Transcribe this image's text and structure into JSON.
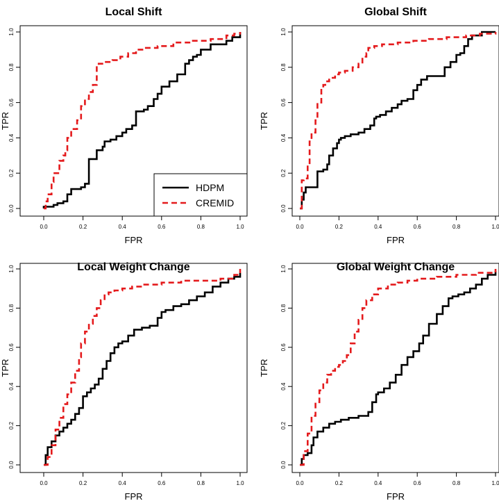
{
  "colors": {
    "hdpm": "#000000",
    "cremid": "#e41a1c"
  },
  "legend": {
    "entries": [
      "HDPM",
      "CREMID"
    ],
    "panel": 0,
    "placement": "bottom-right"
  },
  "chart_data": [
    {
      "type": "line",
      "title": "Local Shift",
      "xlabel": "FPR",
      "ylabel": "TPR",
      "xlim": [
        0,
        1
      ],
      "ylim": [
        0,
        1
      ],
      "xticks": [
        "0.0",
        "0.2",
        "0.4",
        "0.6",
        "0.8",
        "1.0"
      ],
      "yticks": [
        "0.0",
        "0.2",
        "0.4",
        "0.6",
        "0.8",
        "1.0"
      ],
      "series": [
        {
          "name": "HDPM",
          "style": "solid",
          "x": [
            0.0,
            0.0,
            0.05,
            0.07,
            0.1,
            0.12,
            0.14,
            0.19,
            0.21,
            0.23,
            0.23,
            0.25,
            0.27,
            0.27,
            0.3,
            0.31,
            0.34,
            0.37,
            0.4,
            0.42,
            0.45,
            0.47,
            0.47,
            0.5,
            0.51,
            0.53,
            0.56,
            0.58,
            0.6,
            0.64,
            0.68,
            0.72,
            0.72,
            0.74,
            0.76,
            0.78,
            0.8,
            0.85,
            0.9,
            0.93,
            0.96,
            1.0
          ],
          "y": [
            0.0,
            0.01,
            0.02,
            0.03,
            0.04,
            0.08,
            0.11,
            0.12,
            0.14,
            0.16,
            0.28,
            0.28,
            0.32,
            0.33,
            0.35,
            0.38,
            0.39,
            0.41,
            0.43,
            0.45,
            0.47,
            0.5,
            0.55,
            0.55,
            0.56,
            0.58,
            0.62,
            0.65,
            0.69,
            0.72,
            0.76,
            0.8,
            0.82,
            0.84,
            0.86,
            0.87,
            0.9,
            0.93,
            0.93,
            0.95,
            0.97,
            1.0
          ]
        },
        {
          "name": "CREMID",
          "style": "dashed",
          "x": [
            0.0,
            0.01,
            0.02,
            0.04,
            0.05,
            0.08,
            0.1,
            0.11,
            0.12,
            0.14,
            0.17,
            0.19,
            0.21,
            0.23,
            0.25,
            0.27,
            0.28,
            0.31,
            0.35,
            0.39,
            0.43,
            0.47,
            0.52,
            0.58,
            0.66,
            0.75,
            0.85,
            0.93,
            0.97,
            1.0
          ],
          "y": [
            0.0,
            0.04,
            0.08,
            0.15,
            0.2,
            0.27,
            0.3,
            0.33,
            0.4,
            0.45,
            0.5,
            0.58,
            0.62,
            0.66,
            0.7,
            0.81,
            0.82,
            0.83,
            0.84,
            0.86,
            0.88,
            0.9,
            0.91,
            0.92,
            0.94,
            0.95,
            0.96,
            0.98,
            0.99,
            1.0
          ]
        }
      ]
    },
    {
      "type": "line",
      "title": "Global Shift",
      "xlabel": "FPR",
      "ylabel": "TPR",
      "xlim": [
        0,
        1
      ],
      "ylim": [
        0,
        1
      ],
      "xticks": [
        "0.0",
        "0.2",
        "0.4",
        "0.6",
        "0.8",
        "1.0"
      ],
      "yticks": [
        "0.0",
        "0.2",
        "0.4",
        "0.6",
        "0.8",
        "1.0"
      ],
      "series": [
        {
          "name": "HDPM",
          "style": "solid",
          "x": [
            0.0,
            0.01,
            0.02,
            0.03,
            0.06,
            0.09,
            0.09,
            0.12,
            0.14,
            0.15,
            0.17,
            0.19,
            0.2,
            0.21,
            0.23,
            0.26,
            0.3,
            0.33,
            0.36,
            0.38,
            0.39,
            0.41,
            0.44,
            0.47,
            0.5,
            0.52,
            0.55,
            0.58,
            0.6,
            0.62,
            0.65,
            0.68,
            0.72,
            0.74,
            0.77,
            0.8,
            0.82,
            0.84,
            0.86,
            0.88,
            0.93,
            1.0
          ],
          "y": [
            0.0,
            0.05,
            0.09,
            0.12,
            0.12,
            0.15,
            0.21,
            0.22,
            0.25,
            0.3,
            0.34,
            0.37,
            0.39,
            0.4,
            0.41,
            0.42,
            0.43,
            0.45,
            0.47,
            0.51,
            0.52,
            0.53,
            0.55,
            0.57,
            0.59,
            0.61,
            0.62,
            0.67,
            0.7,
            0.73,
            0.75,
            0.75,
            0.75,
            0.8,
            0.83,
            0.87,
            0.88,
            0.92,
            0.96,
            0.98,
            1.0,
            1.0
          ]
        },
        {
          "name": "CREMID",
          "style": "dashed",
          "x": [
            0.0,
            0.01,
            0.02,
            0.04,
            0.05,
            0.06,
            0.08,
            0.09,
            0.11,
            0.12,
            0.13,
            0.15,
            0.18,
            0.2,
            0.23,
            0.27,
            0.3,
            0.32,
            0.34,
            0.35,
            0.38,
            0.42,
            0.5,
            0.58,
            0.66,
            0.75,
            0.85,
            0.92,
            1.0
          ],
          "y": [
            0.0,
            0.16,
            0.17,
            0.25,
            0.38,
            0.43,
            0.5,
            0.6,
            0.68,
            0.7,
            0.72,
            0.74,
            0.76,
            0.77,
            0.78,
            0.8,
            0.82,
            0.86,
            0.88,
            0.91,
            0.92,
            0.93,
            0.94,
            0.95,
            0.96,
            0.97,
            0.98,
            0.99,
            1.0
          ]
        }
      ]
    },
    {
      "type": "line",
      "title": "Local Weight Change",
      "xlabel": "FPR",
      "ylabel": "TPR",
      "xlim": [
        0,
        1
      ],
      "ylim": [
        0,
        1
      ],
      "xticks": [
        "0.0",
        "0.2",
        "0.4",
        "0.6",
        "0.8",
        "1.0"
      ],
      "yticks": [
        "0.0",
        "0.2",
        "0.4",
        "0.6",
        "0.8",
        "1.0"
      ],
      "series": [
        {
          "name": "HDPM",
          "style": "solid",
          "x": [
            0.0,
            0.01,
            0.02,
            0.04,
            0.06,
            0.08,
            0.1,
            0.12,
            0.14,
            0.16,
            0.18,
            0.2,
            0.22,
            0.24,
            0.26,
            0.28,
            0.3,
            0.32,
            0.34,
            0.36,
            0.38,
            0.4,
            0.43,
            0.46,
            0.5,
            0.54,
            0.58,
            0.6,
            0.62,
            0.66,
            0.7,
            0.74,
            0.78,
            0.82,
            0.86,
            0.9,
            0.94,
            0.97,
            1.0
          ],
          "y": [
            0.0,
            0.05,
            0.09,
            0.12,
            0.15,
            0.17,
            0.19,
            0.21,
            0.23,
            0.26,
            0.29,
            0.35,
            0.37,
            0.39,
            0.41,
            0.44,
            0.49,
            0.53,
            0.57,
            0.6,
            0.62,
            0.63,
            0.66,
            0.69,
            0.7,
            0.71,
            0.75,
            0.78,
            0.79,
            0.81,
            0.82,
            0.84,
            0.86,
            0.88,
            0.91,
            0.93,
            0.95,
            0.96,
            0.98
          ]
        },
        {
          "name": "CREMID",
          "style": "dashed",
          "x": [
            0.0,
            0.02,
            0.04,
            0.06,
            0.08,
            0.1,
            0.12,
            0.14,
            0.16,
            0.18,
            0.19,
            0.21,
            0.23,
            0.25,
            0.27,
            0.29,
            0.31,
            0.33,
            0.36,
            0.4,
            0.45,
            0.5,
            0.6,
            0.7,
            0.8,
            0.9,
            0.97,
            1.0
          ],
          "y": [
            0.0,
            0.04,
            0.1,
            0.18,
            0.24,
            0.31,
            0.36,
            0.42,
            0.48,
            0.55,
            0.62,
            0.68,
            0.72,
            0.76,
            0.8,
            0.84,
            0.87,
            0.88,
            0.89,
            0.9,
            0.91,
            0.92,
            0.93,
            0.94,
            0.94,
            0.95,
            0.97,
            1.0
          ]
        }
      ]
    },
    {
      "type": "line",
      "title": "Global Weight Change",
      "xlabel": "FPR",
      "ylabel": "TPR",
      "xlim": [
        0,
        1
      ],
      "ylim": [
        0,
        1
      ],
      "xticks": [
        "0.0",
        "0.2",
        "0.4",
        "0.6",
        "0.8",
        "1.0"
      ],
      "yticks": [
        "0.0",
        "0.2",
        "0.4",
        "0.6",
        "0.8",
        "1.0"
      ],
      "series": [
        {
          "name": "HDPM",
          "style": "solid",
          "x": [
            0.0,
            0.01,
            0.02,
            0.04,
            0.06,
            0.07,
            0.09,
            0.12,
            0.15,
            0.18,
            0.21,
            0.25,
            0.3,
            0.35,
            0.37,
            0.39,
            0.4,
            0.43,
            0.46,
            0.49,
            0.52,
            0.55,
            0.58,
            0.61,
            0.63,
            0.66,
            0.7,
            0.73,
            0.76,
            0.78,
            0.81,
            0.84,
            0.87,
            0.9,
            0.93,
            0.96,
            1.0
          ],
          "y": [
            0.0,
            0.03,
            0.05,
            0.06,
            0.1,
            0.14,
            0.17,
            0.19,
            0.21,
            0.22,
            0.23,
            0.24,
            0.25,
            0.27,
            0.32,
            0.36,
            0.37,
            0.39,
            0.42,
            0.46,
            0.51,
            0.55,
            0.58,
            0.62,
            0.66,
            0.72,
            0.77,
            0.81,
            0.85,
            0.86,
            0.87,
            0.88,
            0.9,
            0.92,
            0.95,
            0.97,
            0.99
          ]
        },
        {
          "name": "CREMID",
          "style": "dashed",
          "x": [
            0.0,
            0.02,
            0.04,
            0.06,
            0.08,
            0.1,
            0.12,
            0.14,
            0.16,
            0.18,
            0.2,
            0.22,
            0.24,
            0.26,
            0.28,
            0.3,
            0.32,
            0.34,
            0.37,
            0.4,
            0.45,
            0.5,
            0.55,
            0.6,
            0.7,
            0.8,
            0.9,
            1.0
          ],
          "y": [
            0.0,
            0.07,
            0.16,
            0.25,
            0.32,
            0.38,
            0.42,
            0.46,
            0.48,
            0.5,
            0.51,
            0.53,
            0.56,
            0.62,
            0.68,
            0.74,
            0.8,
            0.84,
            0.87,
            0.9,
            0.92,
            0.93,
            0.94,
            0.95,
            0.96,
            0.97,
            0.98,
            1.0
          ]
        }
      ]
    }
  ]
}
